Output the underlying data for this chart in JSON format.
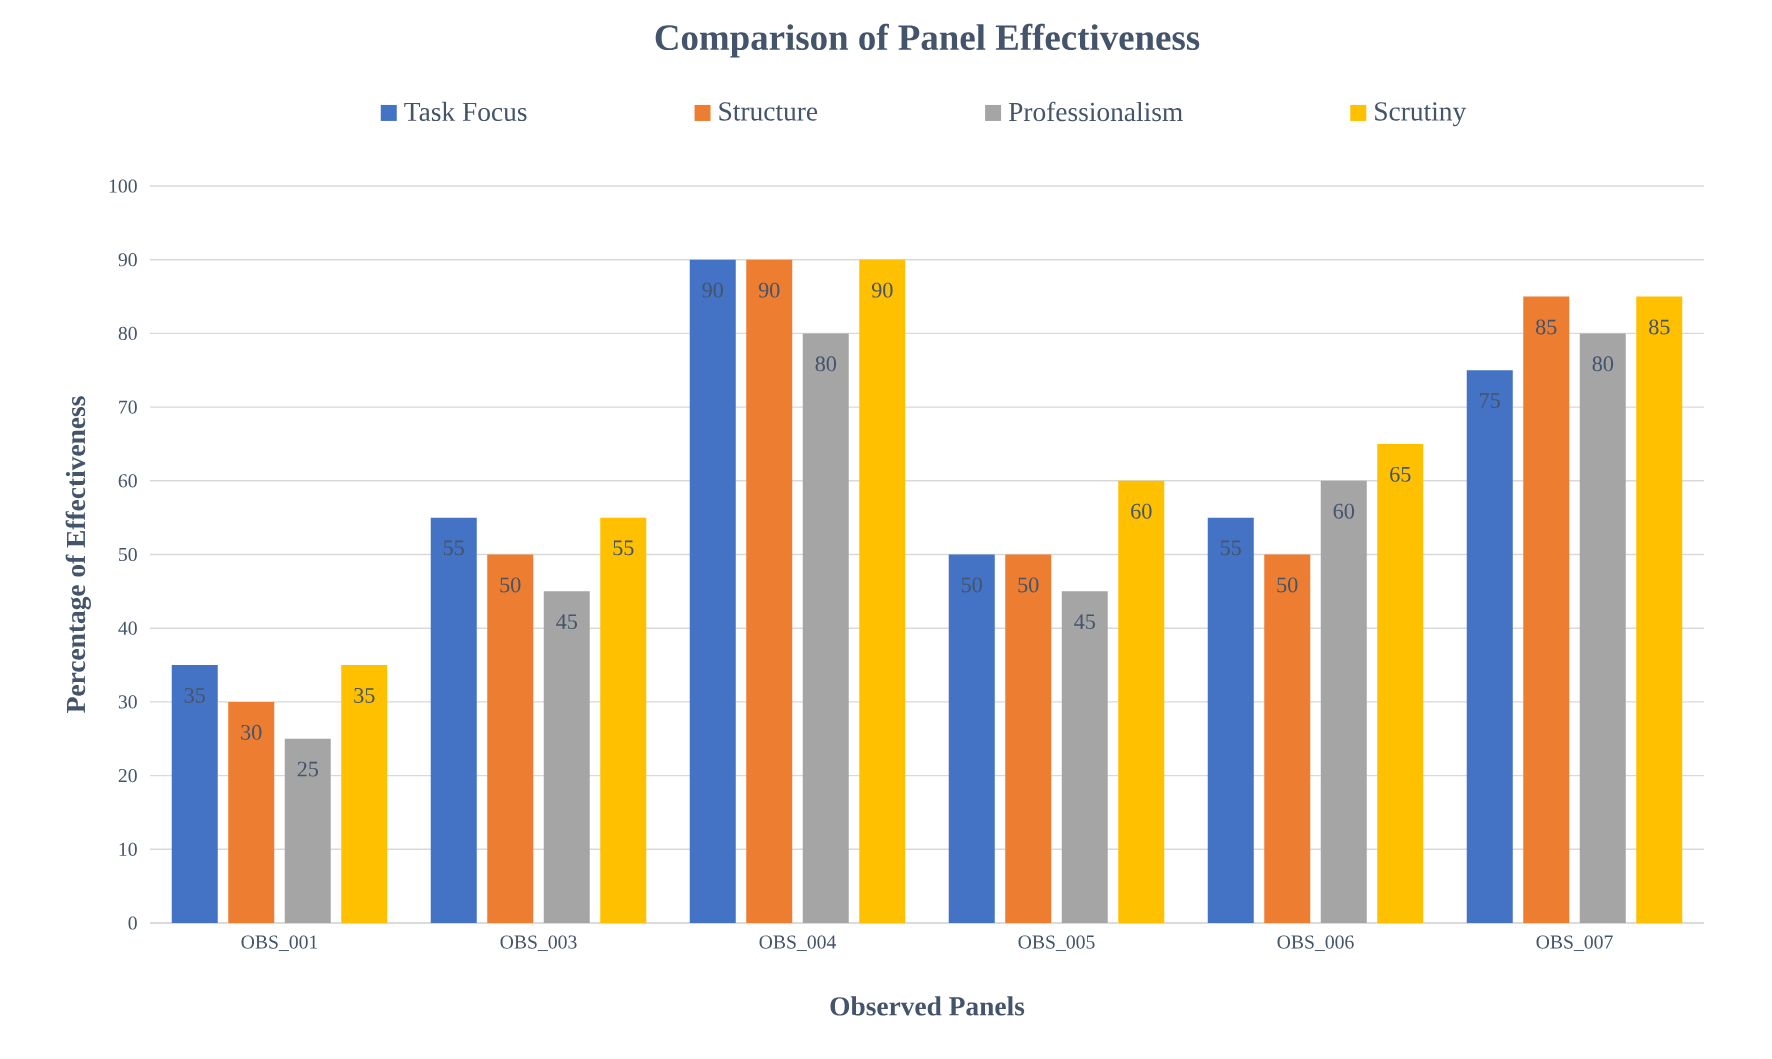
{
  "chart_data": {
    "type": "bar",
    "title": "Comparison of Panel Effectiveness",
    "xlabel": "Observed Panels",
    "ylabel": "Percentage  of Effectiveness",
    "categories": [
      "OBS_001",
      "OBS_003",
      "OBS_004",
      "OBS_005",
      "OBS_006",
      "OBS_007"
    ],
    "series": [
      {
        "name": "Task Focus",
        "color": "#4472c4",
        "values": [
          35,
          55,
          90,
          50,
          55,
          75
        ]
      },
      {
        "name": "Structure",
        "color": "#ed7d31",
        "values": [
          30,
          50,
          90,
          50,
          50,
          85
        ]
      },
      {
        "name": "Professionalism",
        "color": "#a5a5a5",
        "values": [
          25,
          45,
          80,
          45,
          60,
          80
        ]
      },
      {
        "name": "Scrutiny",
        "color": "#ffc000",
        "values": [
          35,
          55,
          90,
          60,
          65,
          85
        ]
      }
    ],
    "ylim": [
      0,
      100
    ],
    "yticks": [
      0,
      10,
      20,
      30,
      40,
      50,
      60,
      70,
      80,
      90,
      100
    ],
    "grid": "y",
    "legend": "top",
    "data_labels": true
  }
}
